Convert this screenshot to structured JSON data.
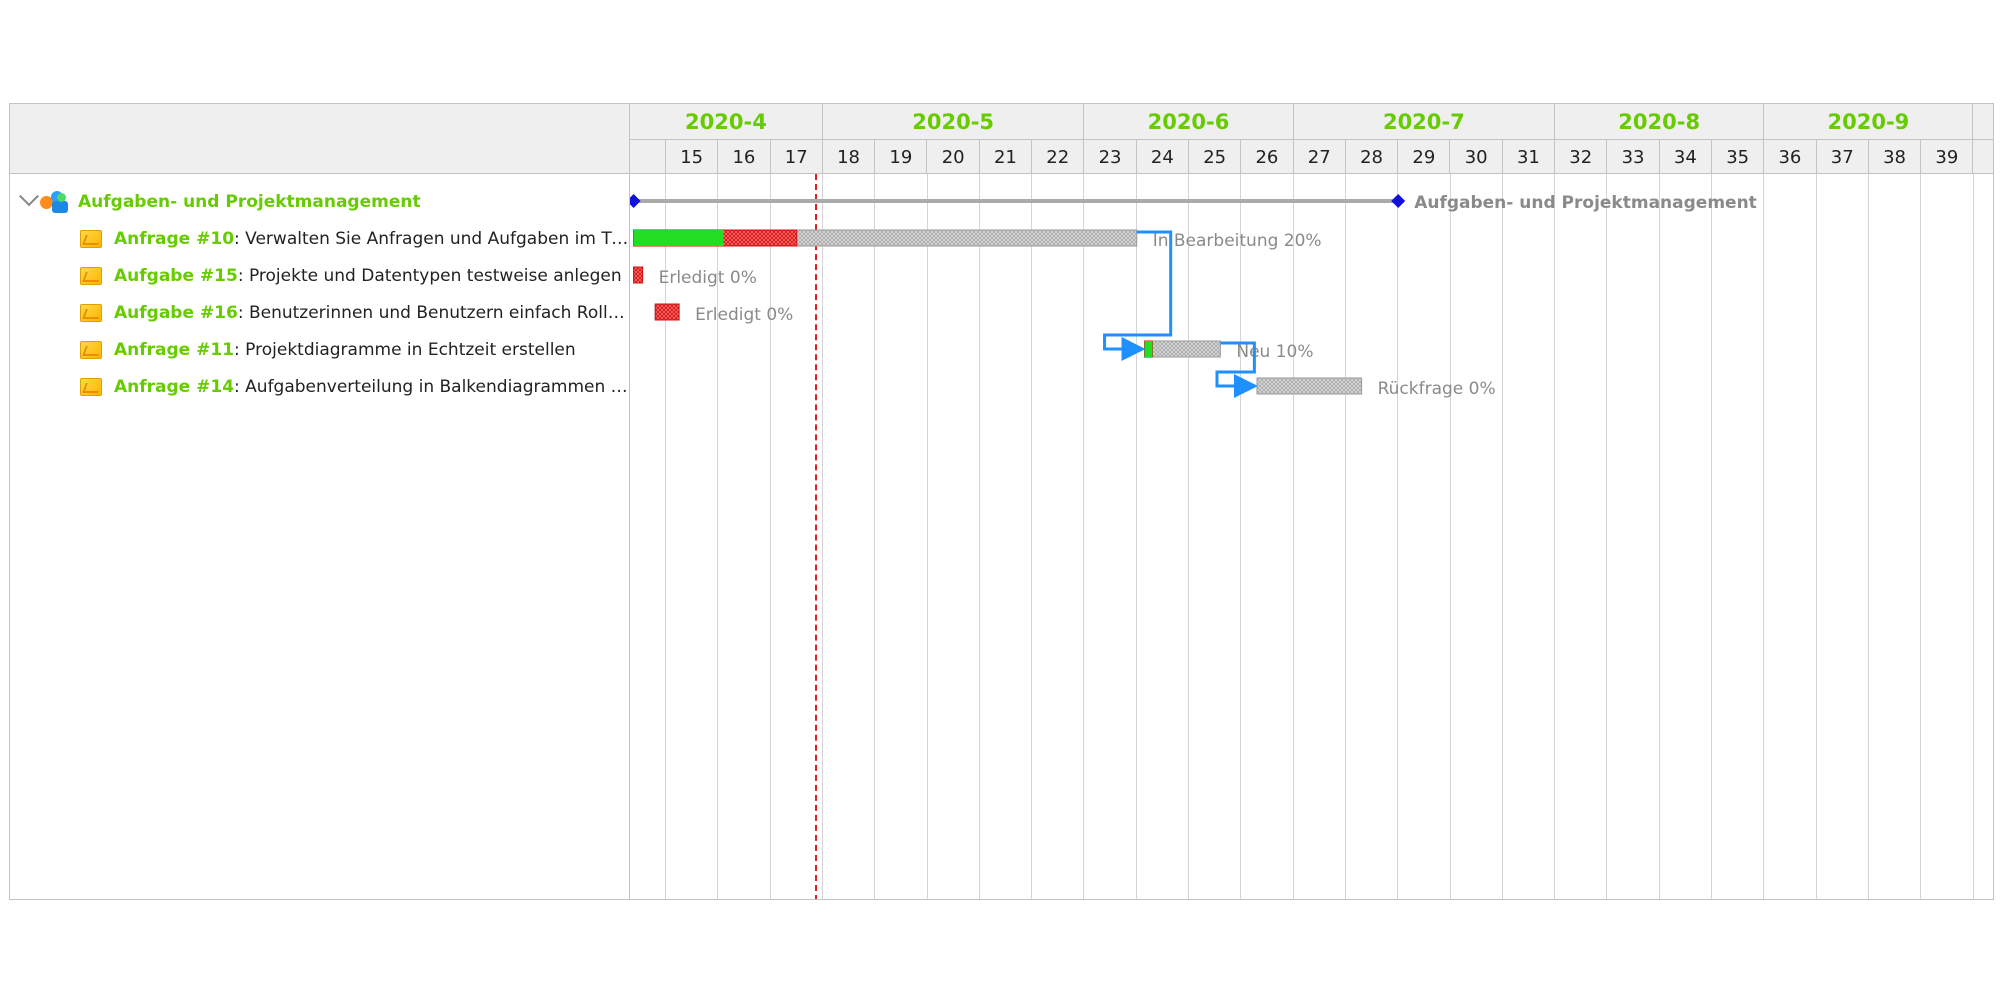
{
  "timeline": {
    "months": [
      {
        "label": "2020-4",
        "first_week": 14,
        "last_week": 17
      },
      {
        "label": "2020-5",
        "first_week": 18,
        "last_week": 22
      },
      {
        "label": "2020-6",
        "first_week": 23,
        "last_week": 26
      },
      {
        "label": "2020-7",
        "first_week": 27,
        "last_week": 31
      },
      {
        "label": "2020-8",
        "first_week": 32,
        "last_week": 35
      },
      {
        "label": "2020-9",
        "first_week": 36,
        "last_week": 39
      }
    ],
    "weeks": [
      "",
      "15",
      "16",
      "17",
      "18",
      "19",
      "20",
      "21",
      "22",
      "23",
      "24",
      "25",
      "26",
      "27",
      "28",
      "29",
      "30",
      "31",
      "32",
      "33",
      "34",
      "35",
      "36",
      "37",
      "38",
      "39"
    ],
    "today_week": 17.85
  },
  "project": {
    "title": "Aufgaben- und Projektmanagement",
    "start_week": 14.1,
    "end_week": 29.0,
    "label": "Aufgaben- und Projektmanagement"
  },
  "tasks": [
    {
      "key": "Anfrage #10",
      "title": ": Verwalten Sie Anfragen und Aufgaben im Tick...",
      "start_week": 14.1,
      "end_week": 24.0,
      "progress_end_week": 16.1,
      "overdue_end_week": 17.5,
      "status": "In Bearbeitung 20%"
    },
    {
      "key": "Aufgabe #15",
      "title": ": Projekte und Datentypen testweise anlegen",
      "start_week": 14.1,
      "end_week": 14.35,
      "progress_end_week": 14.1,
      "overdue_end_week": 14.35,
      "status": "Erledigt 0%"
    },
    {
      "key": "Aufgabe #16",
      "title": ": Benutzerinnen und Benutzern einfach Rollen ...",
      "start_week": 14.7,
      "end_week": 15.25,
      "progress_end_week": 14.7,
      "overdue_end_week": 15.25,
      "status": "Erledigt 0%"
    },
    {
      "key": "Anfrage #11",
      "title": ": Projektdiagramme in Echtzeit erstellen",
      "start_week": 24.15,
      "end_week": 25.6,
      "progress_end_week": 24.3,
      "overdue_end_week": 24.3,
      "status": "Neu 10%"
    },
    {
      "key": "Anfrage #14",
      "title": ": Aufgabenverteilung in Balkendiagrammen dar...",
      "start_week": 26.3,
      "end_week": 28.3,
      "progress_end_week": 26.3,
      "overdue_end_week": 26.3,
      "status": "Rückfrage 0%"
    }
  ],
  "dependencies": [
    {
      "from": 0,
      "to": 3
    },
    {
      "from": 3,
      "to": 4
    }
  ],
  "colors": {
    "accent_green": "#66cc00",
    "progress_green": "#22dd22",
    "overdue_red": "#ee3333",
    "remaining_gray": "#bdbdbd",
    "dependency_blue": "#1e90ff",
    "milestone_blue": "#1010dd",
    "today_red": "#e02020"
  },
  "icons": {
    "expand": "chevron-down-icon",
    "project": "project-icon",
    "task": "task-icon"
  }
}
